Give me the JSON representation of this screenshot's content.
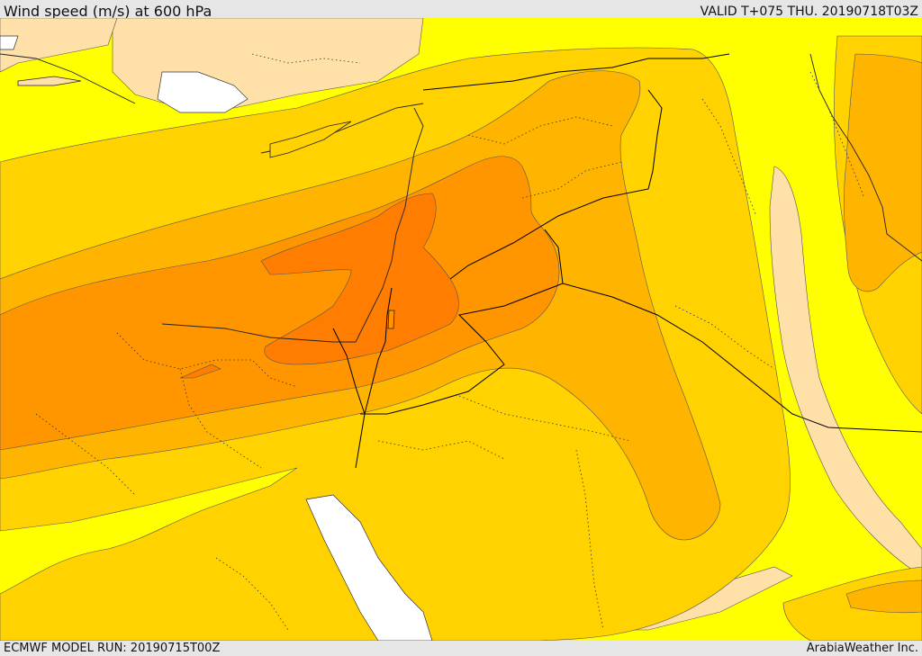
{
  "header": {
    "title": "Wind speed (m/s) at 600 hPa",
    "valid": "VALID T+075 THU. 20190718T03Z"
  },
  "footer": {
    "model_run": "ECMWF MODEL RUN: 20190715T00Z",
    "credit": "ArabiaWeather Inc."
  },
  "palette": {
    "band_lowest": "#ffe0a8",
    "band_low": "#ffff00",
    "band_mid": "#ffd200",
    "band_high": "#ffb400",
    "band_higher": "#ff9600",
    "band_max": "#ff7d00",
    "water": "#ffffff",
    "border": "#000000"
  }
}
